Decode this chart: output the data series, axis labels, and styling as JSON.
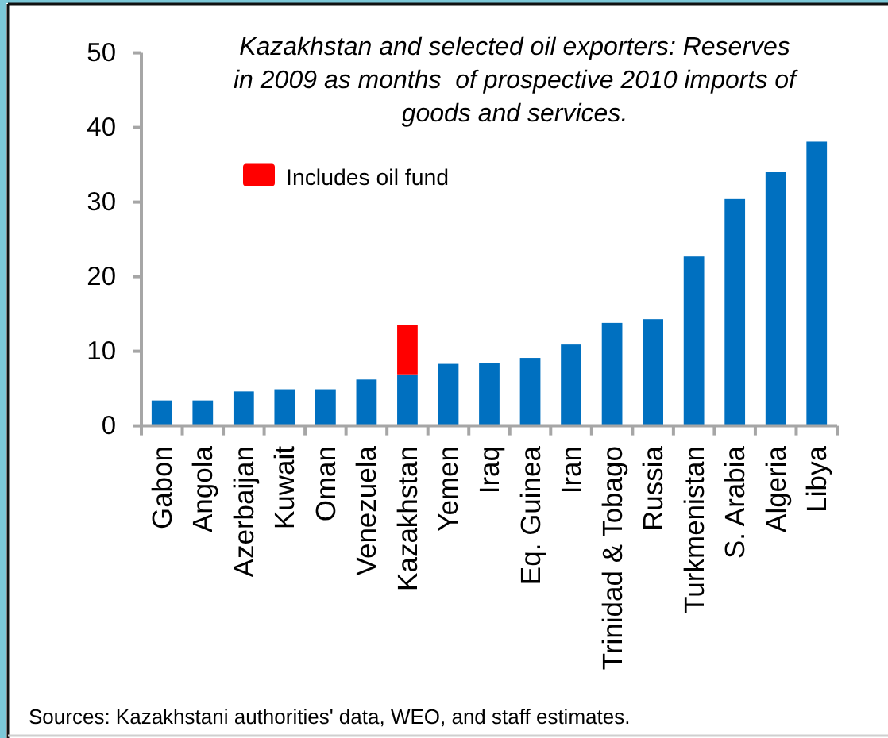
{
  "chart_data": {
    "type": "bar",
    "title": "Kazakhstan and selected oil exporters: Reserves\nin 2009 as months  of prospective 2010 imports of\ngoods and services.",
    "categories": [
      "Gabon",
      "Angola",
      "Azerbaijan",
      "Kuwait",
      "Oman",
      "Venezuela",
      "Kazakhstan",
      "Yemen",
      "Iraq",
      "Eq. Guinea",
      "Iran",
      "Trinidad & Tobago",
      "Russia",
      "Turkmenistan",
      "S. Arabia",
      "Algeria",
      "Libya"
    ],
    "series": [
      {
        "color": "#0070c0",
        "values": [
          3.4,
          3.4,
          4.6,
          4.9,
          4.9,
          6.2,
          6.9,
          8.3,
          8.4,
          9.1,
          10.9,
          13.8,
          14.3,
          22.7,
          30.4,
          34.0,
          38.1
        ]
      },
      {
        "name": "Includes oil fund",
        "color": "#ff0000",
        "values": [
          null,
          null,
          null,
          null,
          null,
          null,
          6.6,
          null,
          null,
          null,
          null,
          null,
          null,
          null,
          null,
          null,
          null
        ]
      }
    ],
    "stacked": true,
    "ylim": [
      0,
      50
    ],
    "yticks": [
      0,
      10,
      20,
      30,
      40,
      50
    ],
    "legend": "top left",
    "annotations": [
      "Sources: Kazakhstani authorities' data, WEO, and staff estimates."
    ]
  }
}
